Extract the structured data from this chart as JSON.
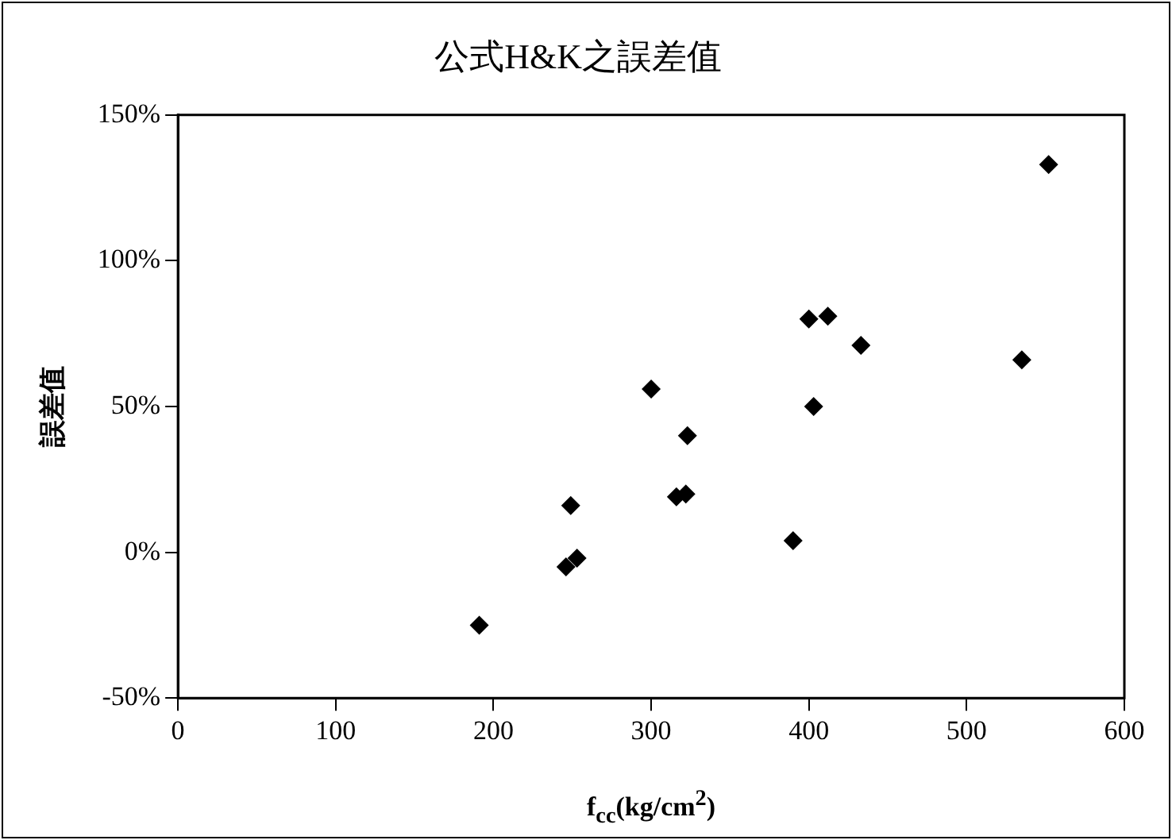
{
  "chart_data": {
    "type": "scatter",
    "title": "公式H&K之誤差值",
    "xlabel": "f$_{cc}$(kg/cm$^{2}$)",
    "ylabel": "誤差值",
    "x": [
      191,
      249,
      246,
      253,
      300,
      323,
      316,
      322,
      390,
      400,
      412,
      403,
      433,
      535,
      552
    ],
    "values": [
      -25,
      16,
      -5,
      -2,
      56,
      40,
      19,
      20,
      4,
      80,
      81,
      50,
      71,
      66,
      133
    ],
    "color": "#000000",
    "marker": "diamond",
    "legend": false,
    "grid": false,
    "xlim": [
      0,
      600
    ],
    "xticks": [
      0,
      100,
      200,
      300,
      400,
      500,
      600
    ],
    "ylim": [
      -50,
      150
    ],
    "yticks": [
      {
        "value": -50,
        "label": "-50%"
      },
      {
        "value": 0,
        "label": "0%"
      },
      {
        "value": 50,
        "label": "50%"
      },
      {
        "value": 100,
        "label": "100%"
      },
      {
        "value": 150,
        "label": "150%"
      }
    ]
  }
}
